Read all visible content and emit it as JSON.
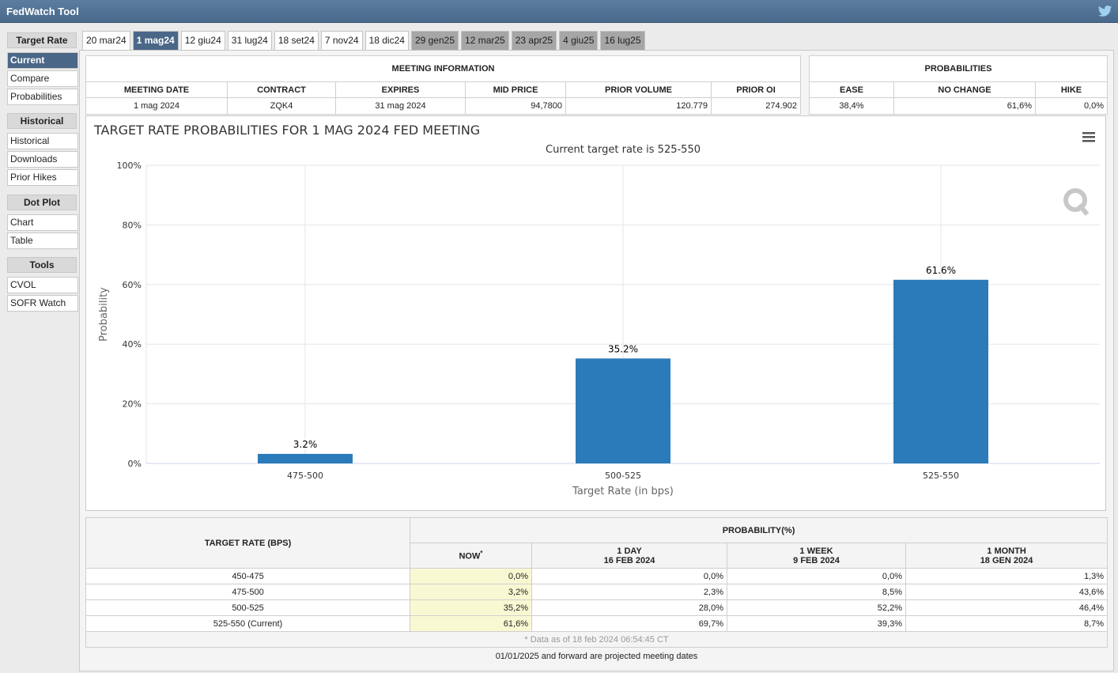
{
  "header": {
    "title": "FedWatch Tool"
  },
  "sidebar": [
    {
      "heading": "Target Rate",
      "items": [
        "Current",
        "Compare",
        "Probabilities"
      ]
    },
    {
      "heading": "Historical",
      "items": [
        "Historical",
        "Downloads",
        "Prior Hikes"
      ]
    },
    {
      "heading": "Dot Plot",
      "items": [
        "Chart",
        "Table"
      ]
    },
    {
      "heading": "Tools",
      "items": [
        "CVOL",
        "SOFR Watch"
      ]
    }
  ],
  "tabs": [
    "20 mar24",
    "1 mag24",
    "12 giu24",
    "31 lug24",
    "18 set24",
    "7 nov24",
    "18 dic24",
    "29 gen25",
    "12 mar25",
    "23 apr25",
    "4 giu25",
    "16 lug25"
  ],
  "meeting_info": {
    "title": "MEETING INFORMATION",
    "columns": [
      "MEETING DATE",
      "CONTRACT",
      "EXPIRES",
      "MID PRICE",
      "PRIOR VOLUME",
      "PRIOR OI"
    ],
    "row": [
      "1 mag 2024",
      "ZQK4",
      "31 mag 2024",
      "94,7800",
      "120.779",
      "274.902"
    ]
  },
  "probabilities": {
    "title": "PROBABILITIES",
    "columns": [
      "EASE",
      "NO CHANGE",
      "HIKE"
    ],
    "row": [
      "38,4%",
      "61,6%",
      "0,0%"
    ]
  },
  "chart_data": {
    "type": "bar",
    "title": "TARGET RATE PROBABILITIES FOR 1 MAG 2024 FED MEETING",
    "subtitle": "Current target rate is 525-550",
    "categories": [
      "475-500",
      "500-525",
      "525-550"
    ],
    "values": [
      3.2,
      35.2,
      61.6
    ],
    "value_labels": [
      "3.2%",
      "35.2%",
      "61.6%"
    ],
    "color": "#2b7bba",
    "ylim": [
      0,
      100
    ],
    "yticks": [
      {
        "value": 0,
        "label": "0%"
      },
      {
        "value": 20,
        "label": "20%"
      },
      {
        "value": 40,
        "label": "40%"
      },
      {
        "value": 60,
        "label": "60%"
      },
      {
        "value": 80,
        "label": "80%"
      },
      {
        "value": 100,
        "label": "100%"
      }
    ],
    "y_label": "Probability",
    "x_label": "Target Rate (in bps)",
    "grid": true
  },
  "prob_table": {
    "rate_header": "TARGET RATE (BPS)",
    "group_header": "PROBABILITY(%)",
    "columns": [
      {
        "label": "NOW",
        "note": "*"
      },
      {
        "label": "1 DAY",
        "date": "16 FEB 2024"
      },
      {
        "label": "1 WEEK",
        "date": "9 FEB 2024"
      },
      {
        "label": "1 MONTH",
        "date": "18 GEN 2024"
      }
    ],
    "rows": [
      [
        "450-475",
        "0,0%",
        "0,0%",
        "0,0%",
        "1,3%"
      ],
      [
        "475-500",
        "3,2%",
        "2,3%",
        "8,5%",
        "43,6%"
      ],
      [
        "500-525",
        "35,2%",
        "28,0%",
        "52,2%",
        "46,4%"
      ],
      [
        "525-550 (Current)",
        "61,6%",
        "69,7%",
        "39,3%",
        "8,7%"
      ]
    ],
    "footnote": "* Data as of 18 feb 2024 06:54:45 CT"
  },
  "note": "01/01/2025 and forward are projected meeting dates"
}
